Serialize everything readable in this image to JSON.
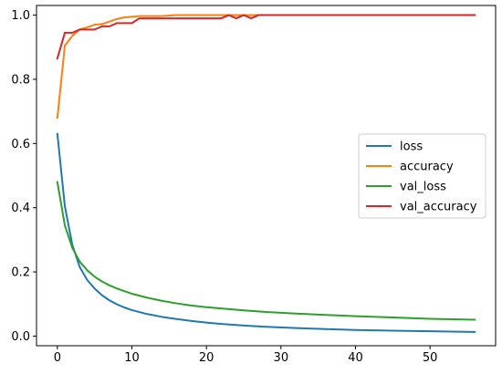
{
  "chart_data": {
    "type": "line",
    "title": "",
    "xlabel": "",
    "ylabel": "",
    "xlim": [
      -2.8,
      58.8
    ],
    "ylim": [
      -0.03,
      1.03
    ],
    "xticks": [
      0,
      10,
      20,
      30,
      40,
      50
    ],
    "yticks": [
      0.0,
      0.2,
      0.4,
      0.6,
      0.8,
      1.0
    ],
    "xtick_labels": [
      "0",
      "10",
      "20",
      "30",
      "40",
      "50"
    ],
    "ytick_labels": [
      "0.0",
      "0.2",
      "0.4",
      "0.6",
      "0.8",
      "1.0"
    ],
    "grid": false,
    "legend": "center-right",
    "series": [
      {
        "name": "loss",
        "color": "#1f77b4",
        "x": [
          0,
          1,
          2,
          3,
          4,
          5,
          6,
          7,
          8,
          9,
          10,
          12,
          14,
          16,
          18,
          20,
          22,
          25,
          28,
          32,
          36,
          40,
          45,
          50,
          56
        ],
        "y": [
          0.63,
          0.405,
          0.285,
          0.215,
          0.175,
          0.148,
          0.127,
          0.111,
          0.099,
          0.089,
          0.081,
          0.069,
          0.06,
          0.053,
          0.047,
          0.042,
          0.038,
          0.033,
          0.029,
          0.025,
          0.022,
          0.019,
          0.017,
          0.015,
          0.013
        ]
      },
      {
        "name": "accuracy",
        "color": "#ff7f0e",
        "x": [
          0,
          1,
          2,
          3,
          4,
          5,
          6,
          7,
          8,
          9,
          10,
          11,
          12,
          14,
          16,
          18,
          20,
          22,
          24,
          26,
          28,
          30,
          35,
          40,
          45,
          50,
          56
        ],
        "y": [
          0.68,
          0.905,
          0.935,
          0.955,
          0.962,
          0.97,
          0.972,
          0.98,
          0.988,
          0.993,
          0.995,
          0.997,
          0.997,
          0.997,
          1.0,
          1.0,
          1.0,
          1.0,
          1.0,
          1.0,
          1.0,
          1.0,
          1.0,
          1.0,
          1.0,
          1.0,
          1.0
        ]
      },
      {
        "name": "val_loss",
        "color": "#2ca02c",
        "x": [
          0,
          1,
          2,
          3,
          4,
          5,
          6,
          7,
          8,
          9,
          10,
          12,
          14,
          16,
          18,
          20,
          22,
          25,
          28,
          32,
          36,
          40,
          45,
          50,
          56
        ],
        "y": [
          0.48,
          0.345,
          0.275,
          0.232,
          0.205,
          0.185,
          0.17,
          0.158,
          0.148,
          0.14,
          0.132,
          0.12,
          0.11,
          0.102,
          0.095,
          0.09,
          0.086,
          0.08,
          0.075,
          0.07,
          0.066,
          0.062,
          0.058,
          0.054,
          0.051
        ]
      },
      {
        "name": "val_accuracy",
        "color": "#d62728",
        "x": [
          0,
          1,
          2,
          3,
          4,
          5,
          6,
          7,
          8,
          9,
          10,
          11,
          12,
          13,
          14,
          15,
          16,
          17,
          18,
          19,
          20,
          21,
          22,
          23,
          24,
          25,
          26,
          27,
          30,
          35,
          40,
          45,
          50,
          56
        ],
        "y": [
          0.865,
          0.945,
          0.945,
          0.955,
          0.955,
          0.955,
          0.965,
          0.965,
          0.975,
          0.975,
          0.975,
          0.99,
          0.99,
          0.99,
          0.99,
          0.99,
          0.99,
          0.99,
          0.99,
          0.99,
          0.99,
          0.99,
          0.99,
          1.0,
          0.99,
          1.0,
          0.99,
          1.0,
          1.0,
          1.0,
          1.0,
          1.0,
          1.0,
          1.0
        ]
      }
    ]
  }
}
